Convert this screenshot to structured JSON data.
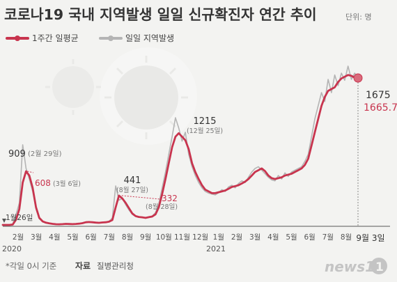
{
  "header": {
    "title": "코로나19 국내 지역발생 일일 신규확진자 연간 추이",
    "unit": "단위: 명"
  },
  "colors": {
    "background": "#f3f3f1",
    "avg_line": "#c8344e",
    "daily_line": "#b4b4b4",
    "text": "#333333",
    "axis": "#555555"
  },
  "chart_data": {
    "type": "line",
    "x_axis": {
      "tick_labels": [
        "2월",
        "3월",
        "4월",
        "5월",
        "6월",
        "7월",
        "8월",
        "9월",
        "10월",
        "11월",
        "12월",
        "1월",
        "2월",
        "3월",
        "4월",
        "5월",
        "6월",
        "7월",
        "8월"
      ],
      "year_labels": [
        "2020",
        "2021"
      ],
      "end_label": "9월 3일"
    },
    "ylim": [
      0,
      1800
    ],
    "series": [
      {
        "name": "1주간 일평균",
        "values": [
          0,
          0,
          0,
          4,
          60,
          180,
          480,
          608,
          560,
          420,
          200,
          80,
          40,
          25,
          18,
          12,
          8,
          7,
          9,
          12,
          10,
          9,
          11,
          14,
          20,
          30,
          32,
          30,
          26,
          24,
          28,
          30,
          36,
          55,
          200,
          332,
          300,
          250,
          190,
          130,
          100,
          90,
          86,
          80,
          88,
          95,
          120,
          200,
          350,
          520,
          700,
          880,
          1000,
          1040,
          1000,
          960,
          860,
          700,
          600,
          520,
          450,
          400,
          380,
          360,
          360,
          370,
          380,
          390,
          410,
          430,
          440,
          450,
          470,
          490,
          520,
          560,
          600,
          620,
          640,
          610,
          560,
          530,
          520,
          530,
          540,
          560,
          570,
          580,
          600,
          620,
          640,
          680,
          750,
          900,
          1050,
          1200,
          1350,
          1450,
          1520,
          1540,
          1560,
          1620,
          1660,
          1680,
          1700,
          1690,
          1670,
          1665.7
        ]
      },
      {
        "name": "일일 지역발생",
        "values": [
          0,
          0,
          0,
          10,
          120,
          250,
          909,
          640,
          520,
          380,
          180,
          70,
          35,
          20,
          15,
          10,
          6,
          6,
          8,
          14,
          9,
          8,
          12,
          15,
          24,
          34,
          38,
          28,
          22,
          26,
          30,
          34,
          40,
          80,
          441,
          280,
          300,
          230,
          170,
          120,
          95,
          85,
          90,
          75,
          92,
          100,
          140,
          240,
          420,
          600,
          800,
          1000,
          1215,
          1100,
          950,
          1050,
          800,
          660,
          560,
          480,
          420,
          380,
          360,
          350,
          340,
          365,
          400,
          380,
          430,
          450,
          420,
          470,
          500,
          480,
          540,
          600,
          640,
          660,
          620,
          580,
          540,
          510,
          500,
          560,
          520,
          590,
          550,
          600,
          620,
          640,
          660,
          720,
          800,
          1000,
          1200,
          1350,
          1500,
          1400,
          1650,
          1500,
          1700,
          1580,
          1720,
          1640,
          1800,
          1650,
          1720,
          1675
        ]
      }
    ],
    "annotations": [
      {
        "text": "1월26일",
        "x_index": 3,
        "value": 4
      },
      {
        "text": "909",
        "sub": "(2월 29일)",
        "x_index": 6,
        "value": 909
      },
      {
        "text": "608",
        "sub": "(3월 6일)",
        "x_index": 7,
        "value": 608
      },
      {
        "text": "441",
        "sub": "(8월 27일)",
        "x_index": 34,
        "value": 441
      },
      {
        "text": "332",
        "sub": "(8월 28일)",
        "x_index": 35,
        "value": 332
      },
      {
        "text": "1215",
        "sub": "(12월 25일)",
        "x_index": 52,
        "value": 1215
      },
      {
        "text": "1675",
        "x_index": 107,
        "value": 1675
      },
      {
        "text": "1665.7",
        "x_index": 107,
        "value": 1665.7
      }
    ]
  },
  "footer": {
    "note": "*각일 0시 기준",
    "source_label": "자료",
    "source": "질병관리청",
    "logo": "news1"
  }
}
